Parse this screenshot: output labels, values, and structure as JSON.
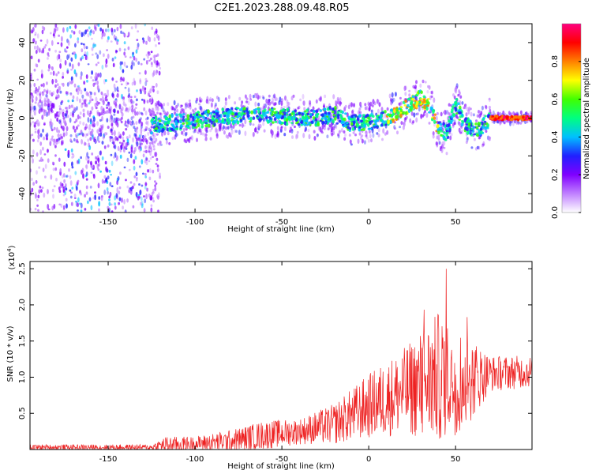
{
  "title": "C2E1.2023.288.09.48.R05",
  "charts": {
    "spectrogram": {
      "type": "heatmap",
      "xlabel": "Height of straight line (km)",
      "ylabel": "Frequency (Hz)",
      "xlim": [
        -195,
        94
      ],
      "ylim": [
        -50,
        50
      ],
      "xticks": [
        -150,
        -100,
        -50,
        0,
        50
      ],
      "yticks": [
        -40,
        -20,
        0,
        20,
        40
      ],
      "colorbar": {
        "label": "Normalized spectral amplitude",
        "range": [
          0,
          1
        ],
        "ticks": [
          "0.0",
          "0.2",
          "0.4",
          "0.6",
          "0.8"
        ],
        "tick_values": [
          0.0,
          0.2,
          0.4,
          0.6,
          0.8
        ],
        "colors": [
          "#ffffff",
          "#c080ff",
          "#8000ff",
          "#2020ff",
          "#00c0ff",
          "#00ff80",
          "#40ff00",
          "#ffff00",
          "#ff8000",
          "#ff0000",
          "#ff0080"
        ]
      },
      "center_track": [
        {
          "x": -195,
          "y": 2
        },
        {
          "x": -170,
          "y": 0
        },
        {
          "x": -150,
          "y": -1
        },
        {
          "x": -125,
          "y": -4
        },
        {
          "x": -110,
          "y": -2
        },
        {
          "x": -90,
          "y": 0
        },
        {
          "x": -70,
          "y": 2
        },
        {
          "x": -50,
          "y": 1
        },
        {
          "x": -30,
          "y": 0
        },
        {
          "x": -20,
          "y": 2
        },
        {
          "x": -10,
          "y": -3
        },
        {
          "x": 0,
          "y": -2
        },
        {
          "x": 10,
          "y": 0
        },
        {
          "x": 20,
          "y": 5
        },
        {
          "x": 30,
          "y": 11
        },
        {
          "x": 35,
          "y": 6
        },
        {
          "x": 40,
          "y": -5
        },
        {
          "x": 45,
          "y": -8
        },
        {
          "x": 50,
          "y": 8
        },
        {
          "x": 55,
          "y": -3
        },
        {
          "x": 60,
          "y": -6
        },
        {
          "x": 65,
          "y": -5
        },
        {
          "x": 70,
          "y": 0
        },
        {
          "x": 94,
          "y": 0
        }
      ]
    },
    "snr": {
      "type": "line",
      "xlabel": "Height of straight line (km)",
      "ylabel": "SNR (10 * v/v)",
      "yscale": "(x10",
      "yscale_exp": "4",
      "yscale_close": ")",
      "xlim": [
        -195,
        94
      ],
      "ylim": [
        0,
        2.6
      ],
      "xticks": [
        -150,
        -100,
        -50,
        0,
        50
      ],
      "yticks": [
        "0.5",
        "1.0",
        "1.5",
        "2.0",
        "2.5"
      ],
      "ytick_values": [
        0.5,
        1.0,
        1.5,
        2.0,
        2.5
      ],
      "line_color": "#ee2222",
      "envelope": [
        {
          "x": -195,
          "base": 0.03,
          "amp": 0.04
        },
        {
          "x": -125,
          "base": 0.03,
          "amp": 0.04
        },
        {
          "x": -118,
          "base": 0.06,
          "amp": 0.12
        },
        {
          "x": -100,
          "base": 0.08,
          "amp": 0.1
        },
        {
          "x": -80,
          "base": 0.12,
          "amp": 0.15
        },
        {
          "x": -60,
          "base": 0.2,
          "amp": 0.2
        },
        {
          "x": -40,
          "base": 0.25,
          "amp": 0.18
        },
        {
          "x": -20,
          "base": 0.35,
          "amp": 0.28
        },
        {
          "x": 0,
          "base": 0.6,
          "amp": 0.45
        },
        {
          "x": 20,
          "base": 0.8,
          "amp": 0.6
        },
        {
          "x": 40,
          "base": 1.0,
          "amp": 0.9
        },
        {
          "x": 55,
          "base": 0.95,
          "amp": 0.7
        },
        {
          "x": 70,
          "base": 1.05,
          "amp": 0.25
        },
        {
          "x": 94,
          "base": 1.08,
          "amp": 0.22
        }
      ]
    }
  }
}
